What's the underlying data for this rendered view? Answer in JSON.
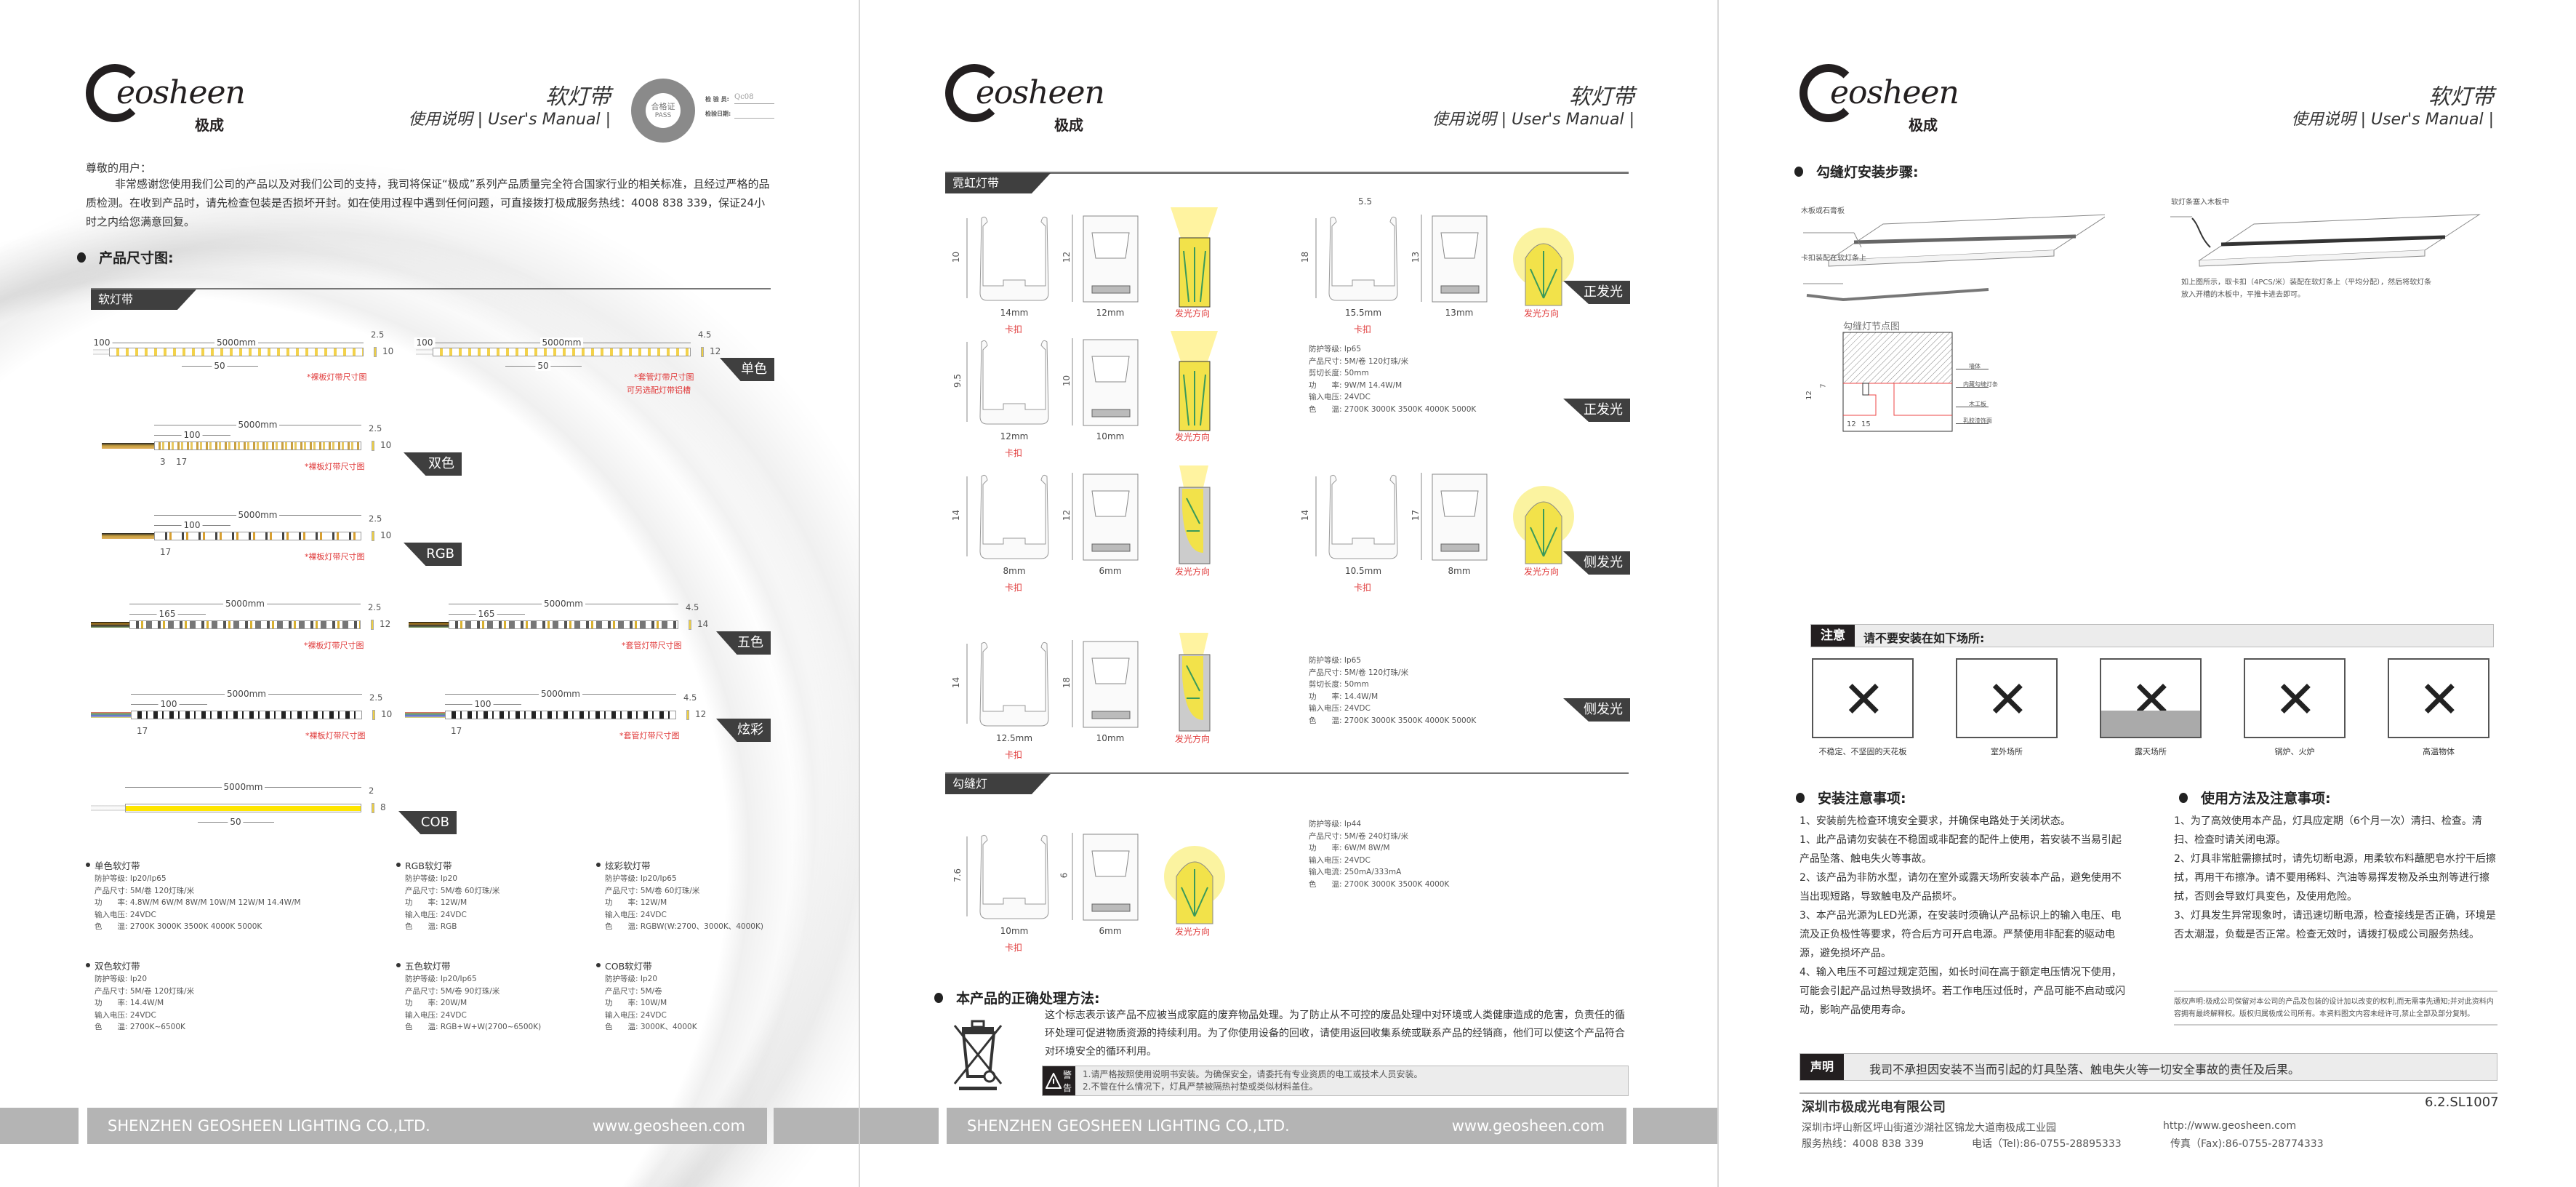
{
  "header": {
    "logo_text": "eosheen",
    "logo_cn": "极成",
    "title": "软灯带",
    "subtitle": "使用说明 | User's Manual |"
  },
  "stamp": {
    "ring": "SHENZHEN GEOSHEEN LIGHTING CO.,LTD",
    "center": "合格证",
    "pass": "PASS",
    "inspector_label": "检 验 员:",
    "inspector": "Qc08",
    "date_label": "检验日期:"
  },
  "footer": {
    "company": "SHENZHEN GEOSHEEN LIGHTING CO.,LTD.",
    "url": "www.geosheen.com"
  },
  "page1": {
    "greeting": "尊敬的用户：",
    "intro": "非常感谢您使用我们公司的产品以及对我们公司的支持，我司将保证“极成”系列产品质量完全符合国家行业的相关标准，且经过严格的品质检测。在收到产品时，请先检查包装是否损坏开封。如在使用过程中遇到任何问题，可直接拨打极成服务热线：4008 838 339，保证24小时之内给您满意回复。",
    "section_title": "产品尺寸图:",
    "tab": "软灯带",
    "strips": [
      {
        "lead": "100",
        "total": "5000mm",
        "segment": "50",
        "thickness": "2.5",
        "height": "10",
        "note": "*裸板灯带尺寸图",
        "pitch": [],
        "led": "white"
      },
      {
        "lead": "100",
        "total": "5000mm",
        "segment": "50",
        "thickness": "4.5",
        "height": "12",
        "note": "*套管灯带尺寸图",
        "note2": "可另选配灯带铝槽",
        "pitch": [],
        "led": "white"
      },
      {
        "total": "5000mm",
        "segment": "100",
        "thickness": "2.5",
        "height": "10",
        "note": "*裸板灯带尺寸图",
        "pitch": [
          "3",
          "17"
        ],
        "led": "dual"
      },
      {
        "total": "5000mm",
        "segment": "100",
        "thickness": "2.5",
        "height": "10",
        "note": "*裸板灯带尺寸图",
        "pitch": [
          "17"
        ],
        "led": "rgb"
      },
      {
        "total": "5000mm",
        "segment": "165",
        "thickness": "2.5",
        "height": "12",
        "note": "*裸板灯带尺寸图",
        "pitch": [],
        "led": "five"
      },
      {
        "total": "5000mm",
        "segment": "165",
        "thickness": "4.5",
        "height": "14",
        "note": "*套管灯带尺寸图",
        "pitch": [],
        "led": "five"
      },
      {
        "total": "5000mm",
        "segment": "100",
        "thickness": "2.5",
        "height": "10",
        "note": "*裸板灯带尺寸图",
        "pitch": [
          "17"
        ],
        "led": "pixel"
      },
      {
        "total": "5000mm",
        "segment": "100",
        "thickness": "4.5",
        "height": "12",
        "note": "*套管灯带尺寸图",
        "pitch": [
          "17"
        ],
        "led": "pixel"
      },
      {
        "total": "5000mm",
        "segment": "50",
        "thickness": "2",
        "height": "8",
        "note": "",
        "pitch": [],
        "led": "cob"
      }
    ],
    "tags": [
      "单色",
      "双色",
      "RGB",
      "五色",
      "炫彩",
      "COB"
    ],
    "specs": [
      {
        "title": "单色软灯带",
        "lines": [
          "防护等级: Ip20/Ip65",
          "产品尺寸: 5M/卷  120灯珠/米",
          "功　　率: 4.8W/M  6W/M  8W/M  10W/M  12W/M  14.4W/M",
          "输入电压: 24VDC",
          "色　　温: 2700K 3000K 3500K 4000K  5000K"
        ]
      },
      {
        "title": "RGB软灯带",
        "lines": [
          "防护等级: Ip20",
          "产品尺寸: 5M/卷  60灯珠/米",
          "功　　率: 12W/M",
          "输入电压: 24VDC",
          "色　　温: RGB"
        ]
      },
      {
        "title": "炫彩软灯带",
        "lines": [
          "防护等级: Ip20/Ip65",
          "产品尺寸: 5M/卷  60灯珠/米",
          "功　　率: 12W/M",
          "输入电压: 24VDC",
          "色　　温: RGBW(W:2700、3000K、4000K)"
        ]
      },
      {
        "title": "双色软灯带",
        "lines": [
          "防护等级: Ip20",
          "产品尺寸: 5M/卷  120灯珠/米",
          "功　　率: 14.4W/M",
          "输入电压: 24VDC",
          "色　　温: 2700K~6500K"
        ]
      },
      {
        "title": "五色软灯带",
        "lines": [
          "防护等级: Ip20/Ip65",
          "产品尺寸: 5M/卷  90灯珠/米",
          "功　　率: 20W/M",
          "输入电压: 24VDC",
          "色　　温: RGB+W+W(2700~6500K)"
        ]
      },
      {
        "title": "COB软灯带",
        "lines": [
          "防护等级: Ip20",
          "产品尺寸: 5M/卷",
          "功　　率: 10W/M",
          "输入电压: 24VDC",
          "色　　温: 3000K、4000K"
        ]
      }
    ]
  },
  "page2": {
    "tab_neon": "霓虹灯带",
    "tab_groove": "勾缝灯",
    "clip_label": "卡扣",
    "dir_label": "发光方向",
    "groups": [
      {
        "clip_w": "14mm",
        "clip_h": "10",
        "prof_w": "12mm",
        "prof_h": "12",
        "glow": "top"
      },
      {
        "clip_w": "15.5mm",
        "clip_h": "18",
        "clip_top": "5.5",
        "prof_w": "13mm",
        "prof_h": "13",
        "glow": "dome"
      },
      {
        "clip_w": "12mm",
        "clip_h": "9.5",
        "prof_w": "10mm",
        "prof_h": "10",
        "glow": "top"
      },
      {
        "clip_w": "8mm",
        "clip_h": "14",
        "prof_w": "6mm",
        "prof_h": "12",
        "glow": "side"
      },
      {
        "clip_w": "10.5mm",
        "clip_h": "14",
        "prof_w": "8mm",
        "prof_h": "17",
        "glow": "dome"
      },
      {
        "clip_w": "12.5mm",
        "clip_h": "14",
        "prof_w": "10mm",
        "prof_h": "18",
        "glow": "side"
      },
      {
        "clip_w": "10mm",
        "clip_h": "7.6",
        "prof_w": "6mm",
        "prof_h": "6",
        "glow": "dome"
      }
    ],
    "tags": [
      "正发光",
      "正发光",
      "侧发光",
      "侧发光"
    ],
    "specs": [
      [
        "防护等级: Ip65",
        "产品尺寸: 5M/卷  120灯珠/米",
        "剪切长度: 50mm",
        "功　　率: 9W/M  14.4W/M",
        "输入电压: 24VDC",
        "色　　温: 2700K 3000K 3500K 4000K  5000K"
      ],
      [
        "防护等级: Ip65",
        "产品尺寸: 5M/卷  120灯珠/米",
        "剪切长度: 50mm",
        "功　　率: 14.4W/M",
        "输入电压: 24VDC",
        "色　　温: 2700K 3000K 3500K 4000K  5000K"
      ],
      [
        "防护等级: Ip44",
        "产品尺寸: 5M/卷  240灯珠/米",
        "功　　率: 6W/M  8W/M",
        "输入电压: 24VDC",
        "输入电流: 250mA/333mA",
        "色　　温: 2700K 3000K 3500K 4000K"
      ]
    ],
    "disposal_title": "本产品的正确处理方法:",
    "disposal_text": "这个标志表示该产品不应被当成家庭的废弃物品处理。为了防止从不可控的废品处理中对环境或人类健康造成的危害，负责任的循环处理可促进物质资源的持续利用。为了你使用设备的回收，请使用返回收集系统或联系产品的经销商，他们可以使这个产品符合对环境安全的循环利用。",
    "warning_label": [
      "警",
      "告"
    ],
    "warnings": [
      "1.请严格按照使用说明书安装。为确保安全，请委托有专业资质的电工或技术人员安装。",
      "2.不管在什么情况下，灯具严禁被隔热衬垫或类似材料盖住。"
    ]
  },
  "page3": {
    "install_title": "勾缝灯安装步骤:",
    "label_board": "木板或石膏板",
    "label_clip": "卡扣装配在软灯条上",
    "label_insert": "软灯条塞入木板中",
    "install_text": "如上图所示，取卡扣（4PCS/米）装配在软灯条上（平均分配），然后将软灯条放入开槽的木板中，平推卡进去即可。",
    "node_title": "勾缝灯节点图",
    "node_labels": [
      "墙体",
      "内藏勾缝灯条",
      "木工板",
      "乳胶漆饰面"
    ],
    "node_dims": [
      "12",
      "7",
      "12",
      "15"
    ],
    "attention_label": "注意",
    "attention_text": "请不要安装在如下场所:",
    "places": [
      "不稳定、不坚固的天花板",
      "室外场所",
      "露天场所",
      "锅炉、火炉",
      "高温物体"
    ],
    "install_notes_title": "安装注意事项:",
    "install_notes": [
      "1、安装前先检查环境安全要求，并确保电路处于关闭状态。",
      "1、此产品请勿安装在不稳固或非配套的配件上使用，若安装不当易引起产品坠落、触电失火等事故。",
      "2、该产品为非防水型，请勿在室外或露天场所安装本产品，避免使用不当出现短路，导致触电及产品损坏。",
      "3、本产品光源为LED光源，在安装时须确认产品标识上的输入电压、电流及正负极性等要求，符合后方可开启电源。严禁使用非配套的驱动电源，避免损坏产品。",
      "4、输入电压不可超过规定范围，如长时间在高于额定电压情况下使用，可能会引起产品过热导致损坏。若工作电压过低时，产品可能不启动或闪动，影响产品使用寿命。"
    ],
    "usage_title": "使用方法及注意事项:",
    "usage_notes": [
      "1、为了高效使用本产品，灯具应定期（6个月一次）清扫、检查。清扫、检查时请关闭电源。",
      "2、灯具非常脏需擦拭时，请先切断电源，用柔软布料蘸肥皂水拧干后擦拭，再用干布擦净。请不要用稀料、汽油等易挥发物及杀虫剂等进行擦拭，否则会导致灯具变色，及使用危险。",
      "3、灯具发生异常现象时，请迅速切断电源，检查接线是否正确，环境是否太潮湿，负载是否正常。检查无效时，请拨打极成公司服务热线。"
    ],
    "copyright": "版权声明:极成公司保留对本公司的产品及包装的设计加以改变的权利,而无需事先通知;并对此资料内容拥有最终解释权。版权归属极成公司所有。本资料图文内容未经许可,禁止全部及部分复制。",
    "statement_label": "声明",
    "statement_text": "我司不承担因安装不当而引起的灯具坠落、触电失火等一切安全事故的责任及后果。",
    "company": "深圳市极成光电有限公司",
    "model": "6.2.SL1007",
    "address": "深圳市坪山新区坪山街道沙湖社区锦龙大道南极成工业园",
    "website": "http://www.geosheen.com",
    "hotline": "服务热线：4008 838 339",
    "tel": "电话（Tel):86-0755-28895333",
    "fax": "传真（Fax):86-0755-28774333"
  }
}
